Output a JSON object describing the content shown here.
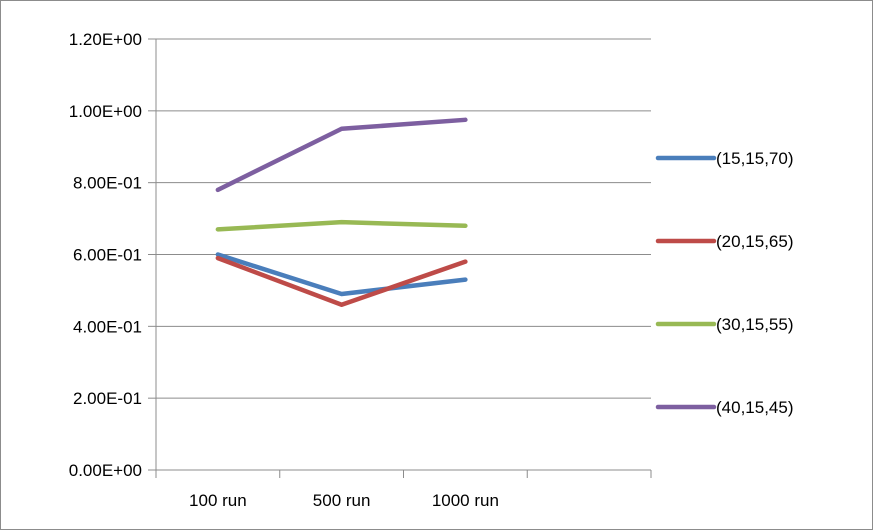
{
  "chart_data": {
    "type": "line",
    "title": "",
    "xlabel": "",
    "ylabel": "",
    "categories": [
      "100 run",
      "500 run",
      "1000 run"
    ],
    "ylim": [
      0,
      1.2
    ],
    "yticks": [
      0,
      0.2,
      0.4,
      0.6,
      0.8,
      1.0,
      1.2
    ],
    "ytick_labels": [
      "0.00E+00",
      "2.00E-01",
      "4.00E-01",
      "6.00E-01",
      "8.00E-01",
      "1.00E+00",
      "1.20E+00"
    ],
    "x_slots": 4,
    "grid": "horizontal",
    "legend_position": "right",
    "series": [
      {
        "name": "(15,15,70)",
        "color": "#4a7ebb",
        "values": [
          0.6,
          0.49,
          0.53
        ]
      },
      {
        "name": "(20,15,65)",
        "color": "#be4b48",
        "values": [
          0.59,
          0.46,
          0.58
        ]
      },
      {
        "name": "(30,15,55)",
        "color": "#98b954",
        "values": [
          0.67,
          0.69,
          0.68
        ]
      },
      {
        "name": "(40,15,45)",
        "color": "#7d5fa0",
        "values": [
          0.78,
          0.95,
          0.975
        ]
      }
    ]
  }
}
